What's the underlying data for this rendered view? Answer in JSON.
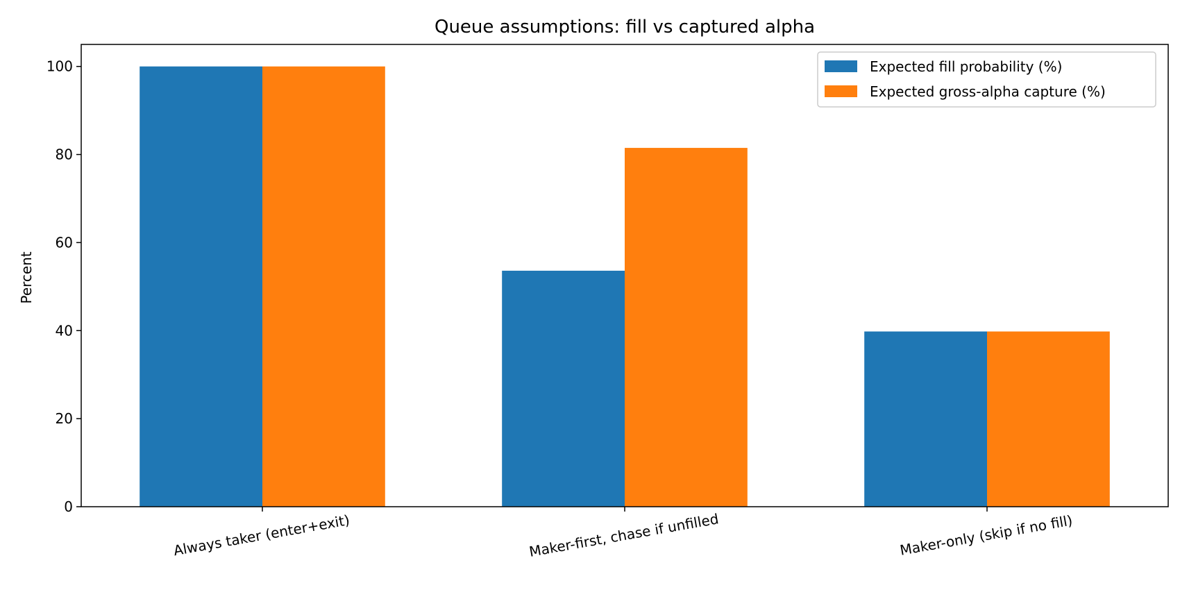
{
  "chart_data": {
    "type": "bar",
    "title": "Queue assumptions: fill vs captured alpha",
    "xlabel": "",
    "ylabel": "Percent",
    "categories": [
      "Always taker (enter+exit)",
      "Maker-first, chase if unfilled",
      "Maker-only (skip if no fill)"
    ],
    "series": [
      {
        "name": "Expected fill probability (%)",
        "values": [
          100,
          53.6,
          39.8
        ],
        "color": "#1f77b4"
      },
      {
        "name": "Expected gross-alpha capture (%)",
        "values": [
          100,
          81.5,
          39.8
        ],
        "color": "#ff7f0e"
      }
    ],
    "ylim": [
      0,
      105
    ],
    "yticks": [
      0,
      20,
      40,
      60,
      80,
      100
    ],
    "grid": false,
    "legend_position": "top-right"
  }
}
